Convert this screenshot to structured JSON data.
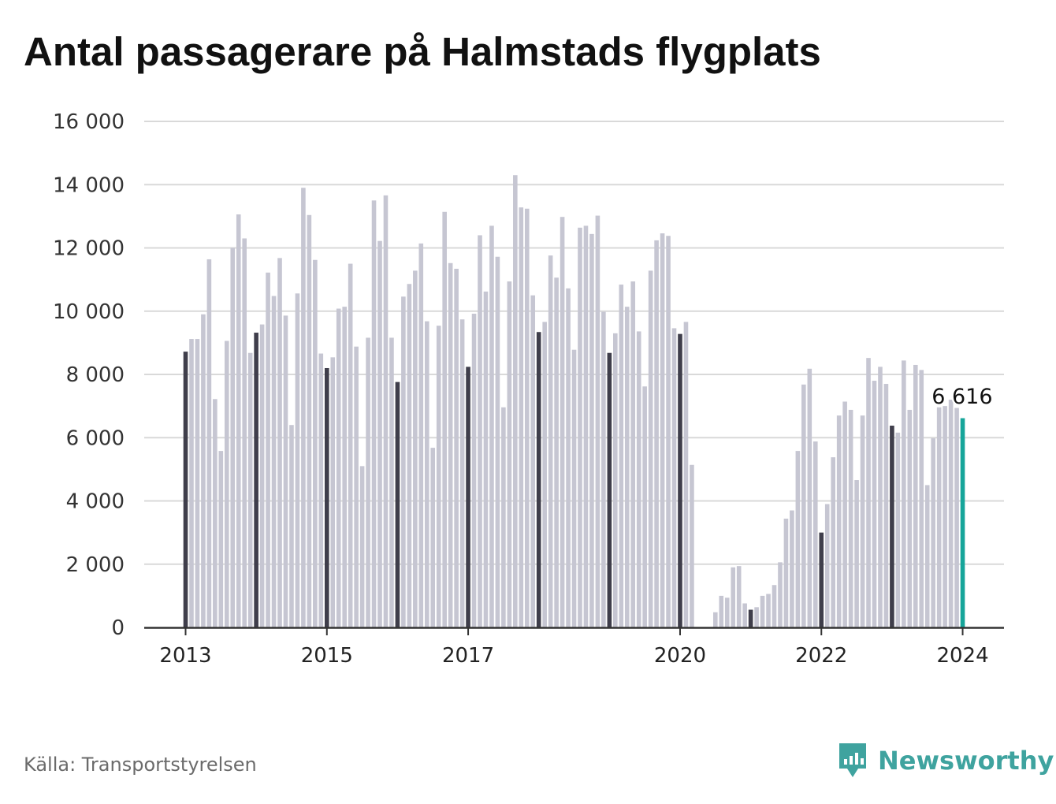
{
  "chart_data": {
    "type": "bar",
    "title": "Antal passagerare på Halmstads flygplats",
    "ylim": [
      0,
      16000
    ],
    "y_ticks": [
      "0",
      "2 000",
      "4 000",
      "6 000",
      "8 000",
      "10 000",
      "12 000",
      "14 000",
      "16 000"
    ],
    "x_ticks": [
      "2013",
      "2015",
      "2017",
      "2020",
      "2022",
      "2024"
    ],
    "grid": true,
    "colors": {
      "january": "#3f3e4b",
      "other": "#c6c6d2",
      "latest": "#16a59a",
      "grid": "#d9d9d9",
      "axis": "#333333"
    },
    "annotation": "6 616",
    "series": [
      {
        "start": "2013-01",
        "values": [
          8720,
          9120,
          9120,
          9900,
          11640,
          7220,
          5580,
          9060,
          12000,
          13060,
          12300,
          8680,
          9320,
          9580,
          11220,
          10480,
          11680,
          9860,
          6400,
          10560,
          13900,
          13040,
          11620,
          8660,
          8200,
          8540,
          10080,
          10140,
          11500,
          8880,
          5100,
          9160,
          13500,
          12220,
          13660,
          9160,
          7760,
          10460,
          10860,
          11280,
          12140,
          9680,
          5680,
          9540,
          13140,
          11520,
          11340,
          9740,
          8240,
          9920,
          12400,
          10620,
          12700,
          11720,
          6960,
          10940,
          14300,
          13280,
          13240,
          10500,
          9340,
          9660,
          11760,
          11060,
          12980,
          10720,
          8780,
          12640,
          12700,
          12440,
          13020,
          9980,
          8680,
          9300,
          10840,
          10140,
          10940,
          9360,
          7620,
          11280,
          12240,
          12460,
          12380,
          9460,
          9280,
          9660,
          5140,
          0,
          0,
          0,
          480,
          1000,
          940,
          1900,
          1940,
          760,
          560,
          640,
          1000,
          1060,
          1340,
          2060,
          3440,
          3700,
          5580,
          7680,
          8180,
          5880,
          3000,
          3900,
          5380,
          6700,
          7140,
          6880,
          4660,
          6700,
          8520,
          7800,
          8240,
          7700,
          6380,
          6160,
          8440,
          6880,
          8300,
          8140,
          4500,
          5980,
          6960,
          7000,
          7200,
          6940,
          6616
        ]
      }
    ]
  },
  "footer": {
    "source": "Källa: Transportstyrelsen",
    "brand": "Newsworthy"
  }
}
